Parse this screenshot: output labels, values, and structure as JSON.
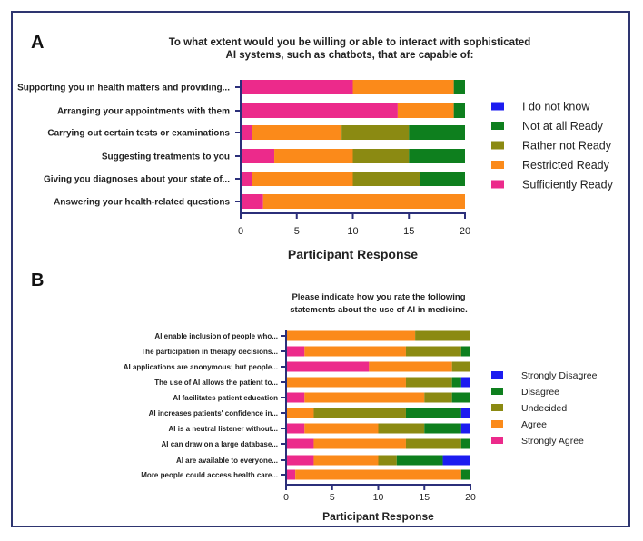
{
  "chart_data": [
    {
      "panel": "A",
      "type": "bar",
      "orientation": "horizontal",
      "stacked": true,
      "title": "To what extent would you be willing or able to interact with sophisticated AI systems, such as chatbots, that are capable of:",
      "title_lines": [
        "To what extent would you be willing or able to interact with sophisticated",
        "AI systems, such as chatbots, that are capable of:"
      ],
      "xlabel": "Participant Response",
      "ylabel": "",
      "xlim": [
        0,
        20
      ],
      "xticks": [
        0,
        5,
        10,
        15,
        20
      ],
      "categories": [
        "Supporting you in health matters and providing...",
        "Arranging your appointments with them",
        "Carrying out certain tests or examinations",
        "Suggesting treatments to you",
        "Giving you diagnoses about your state of...",
        "Answering your health-related questions"
      ],
      "series": [
        {
          "name": "Sufficiently Ready",
          "color": "#ec2a8b",
          "values": [
            10,
            14,
            1,
            3,
            1,
            2
          ]
        },
        {
          "name": "Restricted Ready",
          "color": "#fb8a1a",
          "values": [
            9,
            5,
            8,
            7,
            9,
            18
          ]
        },
        {
          "name": "Rather not Ready",
          "color": "#8b8a12",
          "values": [
            0,
            0,
            6,
            5,
            6,
            0
          ]
        },
        {
          "name": "Not at all Ready",
          "color": "#0e7f1e",
          "values": [
            1,
            1,
            5,
            5,
            4,
            0
          ]
        },
        {
          "name": "I do not know",
          "color": "#1c1cf0",
          "values": [
            0,
            0,
            0,
            0,
            0,
            0
          ]
        }
      ],
      "legend_order": [
        "I do not know",
        "Not at all Ready",
        "Rather not Ready",
        "Restricted Ready",
        "Sufficiently Ready"
      ],
      "legend": "right"
    },
    {
      "panel": "B",
      "type": "bar",
      "orientation": "horizontal",
      "stacked": true,
      "title": "Please indicate how you rate the following statements about the use of AI in medicine.",
      "title_lines": [
        "Please indicate how you rate the following",
        "statements about the use of AI in medicine."
      ],
      "xlabel": "Participant Response",
      "ylabel": "",
      "xlim": [
        0,
        20
      ],
      "xticks": [
        0,
        5,
        10,
        15,
        20
      ],
      "categories": [
        "AI enable inclusion of people who...",
        "The participation in therapy decisions...",
        "AI applications are anonymous; but people...",
        "The use of AI allows the patient to...",
        "AI facilitates patient education",
        "AI increases patients' confidence in...",
        "AI is a neutral listener without...",
        "AI can draw on a large database...",
        "AI are available to everyone...",
        "More people could access health care..."
      ],
      "series": [
        {
          "name": "Strongly Agree",
          "color": "#ec2a8b",
          "values": [
            0,
            2,
            9,
            0,
            2,
            0,
            2,
            3,
            3,
            1
          ]
        },
        {
          "name": "Agree",
          "color": "#fb8a1a",
          "values": [
            14,
            11,
            9,
            13,
            13,
            3,
            8,
            10,
            7,
            18
          ]
        },
        {
          "name": "Undecided",
          "color": "#8b8a12",
          "values": [
            6,
            6,
            2,
            5,
            3,
            10,
            5,
            6,
            2,
            0
          ]
        },
        {
          "name": "Disagree",
          "color": "#0e7f1e",
          "values": [
            0,
            1,
            0,
            1,
            2,
            6,
            4,
            1,
            5,
            1
          ]
        },
        {
          "name": "Strongly Disagree",
          "color": "#1c1cf0",
          "values": [
            0,
            0,
            0,
            1,
            0,
            1,
            1,
            0,
            3,
            0
          ]
        }
      ],
      "legend_order": [
        "Strongly Disagree",
        "Disagree",
        "Undecided",
        "Agree",
        "Strongly Agree"
      ],
      "legend": "right"
    }
  ]
}
